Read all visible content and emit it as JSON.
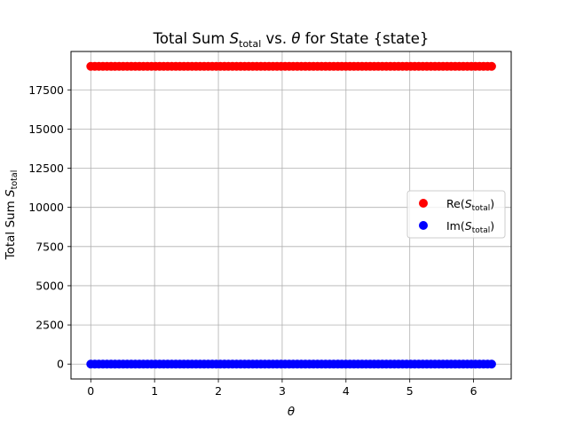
{
  "chart_data": {
    "type": "scatter",
    "title": "Total Sum S_total vs. θ for State {state}",
    "title_parts": {
      "pre": "Total Sum ",
      "sym": "S",
      "sub": "total",
      "mid": " vs. ",
      "theta": "θ",
      "post": " for State {state}"
    },
    "xlabel": "θ",
    "ylabel_parts": {
      "pre": "Total Sum ",
      "sym": "S",
      "sub": "total"
    },
    "xlim": [
      -0.31,
      6.59
    ],
    "ylim": [
      -950,
      19950
    ],
    "xticks": [
      0,
      1,
      2,
      3,
      4,
      5,
      6
    ],
    "yticks": [
      0,
      2500,
      5000,
      7500,
      10000,
      12500,
      15000,
      17500
    ],
    "grid": true,
    "legend_position": "center-right",
    "series": [
      {
        "name": "Re(S_total)",
        "label_parts": {
          "pre": "Re(",
          "sym": "S",
          "sub": "total",
          "post": ")"
        },
        "color": "#ff0000",
        "x_range": [
          0,
          6.283
        ],
        "y": 19000,
        "num_points": 100
      },
      {
        "name": "Im(S_total)",
        "label_parts": {
          "pre": "Im(",
          "sym": "S",
          "sub": "total",
          "post": ")"
        },
        "color": "#0000ff",
        "x_range": [
          0,
          6.283
        ],
        "y": 0,
        "num_points": 100
      }
    ]
  }
}
